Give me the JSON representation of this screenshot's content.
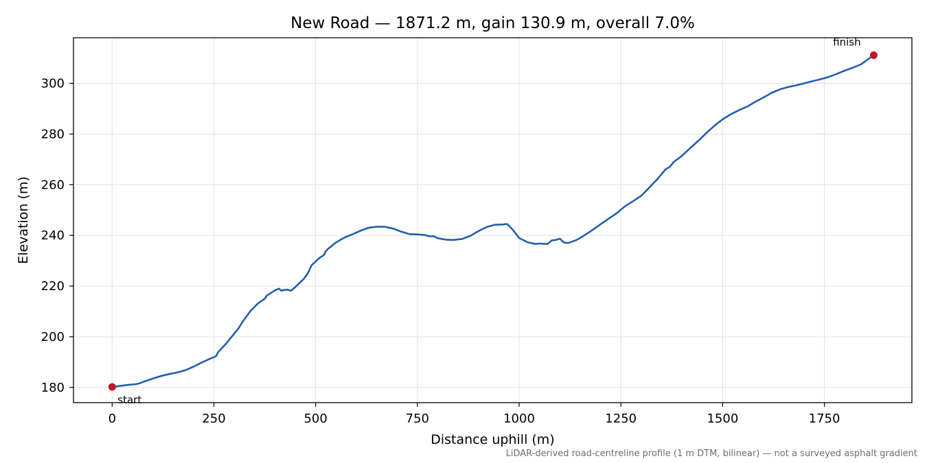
{
  "chart_data": {
    "type": "line",
    "title": "New Road — 1871.2 m, gain 130.9 m, overall 7.0%",
    "xlabel": "Distance uphill (m)",
    "ylabel": "Elevation (m)",
    "xlim": [
      -95,
      1965
    ],
    "ylim": [
      174,
      318
    ],
    "xticks": [
      0,
      250,
      500,
      750,
      1000,
      1250,
      1500,
      1750
    ],
    "yticks": [
      180,
      200,
      220,
      240,
      260,
      280,
      300
    ],
    "grid": true,
    "colors": {
      "line": "#1f5fb0",
      "marker": "#c0182a",
      "grid": "#e0e0e0",
      "footnote": "#6e6e6e"
    },
    "series": [
      {
        "x": [
          0,
          20,
          40,
          60,
          70,
          80,
          100,
          120,
          140,
          160,
          180,
          200,
          220,
          240,
          255,
          260,
          280,
          300,
          310,
          320,
          340,
          360,
          375,
          380,
          400,
          410,
          415,
          430,
          440,
          450,
          470,
          480,
          490,
          500,
          510,
          520,
          525,
          530,
          550,
          570,
          590,
          610,
          630,
          650,
          670,
          690,
          710,
          730,
          750,
          770,
          780,
          790,
          800,
          820,
          840,
          860,
          880,
          900,
          920,
          940,
          960,
          970,
          975,
          985,
          1000,
          1020,
          1040,
          1050,
          1060,
          1070,
          1080,
          1090,
          1100,
          1110,
          1120,
          1140,
          1160,
          1180,
          1200,
          1220,
          1240,
          1260,
          1280,
          1300,
          1320,
          1340,
          1350,
          1360,
          1370,
          1380,
          1400,
          1420,
          1440,
          1460,
          1480,
          1500,
          1520,
          1540,
          1560,
          1580,
          1600,
          1620,
          1640,
          1660,
          1680,
          1700,
          1720,
          1740,
          1760,
          1780,
          1800,
          1820,
          1840,
          1871
        ],
        "y": [
          180.2,
          180.6,
          181.0,
          181.3,
          181.8,
          182.4,
          183.5,
          184.5,
          185.3,
          185.9,
          186.8,
          188.2,
          189.8,
          191.3,
          192.3,
          193.8,
          197.3,
          201.2,
          203.2,
          205.8,
          210.2,
          213.4,
          215.0,
          216.2,
          218.3,
          219.0,
          218.2,
          218.6,
          218.2,
          219.6,
          222.7,
          224.8,
          228.2,
          229.7,
          231.2,
          232.2,
          233.8,
          234.6,
          237.2,
          239.1,
          240.4,
          241.8,
          243.0,
          243.4,
          243.4,
          242.7,
          241.5,
          240.5,
          240.4,
          240.1,
          239.6,
          239.7,
          238.9,
          238.3,
          238.2,
          238.6,
          239.8,
          241.7,
          243.3,
          244.2,
          244.3,
          244.5,
          243.8,
          242.1,
          239.0,
          237.3,
          236.6,
          236.8,
          236.7,
          236.6,
          238.0,
          238.2,
          238.7,
          237.2,
          237.0,
          238.1,
          240.0,
          242.1,
          244.4,
          246.6,
          248.8,
          251.5,
          253.5,
          255.6,
          258.9,
          262.3,
          264.2,
          266.1,
          267.0,
          269.0,
          271.4,
          274.4,
          277.3,
          280.4,
          283.3,
          285.8,
          287.8,
          289.4,
          290.8,
          292.7,
          294.4,
          296.2,
          297.6,
          298.5,
          299.2,
          300.0,
          300.8,
          301.6,
          302.5,
          303.7,
          305.0,
          306.2,
          307.5,
          311.1
        ]
      }
    ],
    "markers": [
      {
        "x": 0,
        "y": 180.2,
        "label": "start"
      },
      {
        "x": 1871.2,
        "y": 311.1,
        "label": "finish"
      }
    ],
    "footnote": "LiDAR-derived road-centreline profile (1 m DTM, bilinear) — not a surveyed asphalt gradient"
  }
}
